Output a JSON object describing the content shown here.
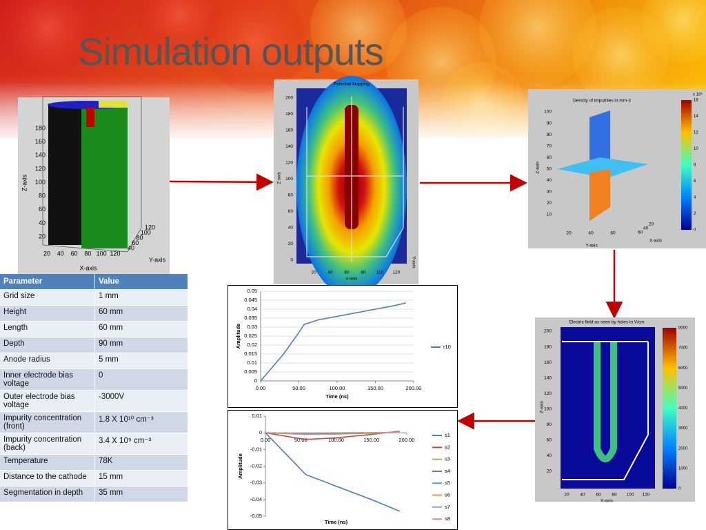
{
  "slide": {
    "title": "Simulation outputs",
    "figures": [
      {
        "xlabel": "X-axis",
        "ylabel": "Z-axis",
        "zlabel": "Y-axis",
        "xticks": [
          20,
          40,
          60,
          80,
          100,
          120
        ],
        "yticks": [
          20,
          40,
          60,
          80,
          100,
          120,
          140,
          160,
          180
        ],
        "zticks": [
          40,
          60,
          80,
          100,
          120
        ]
      },
      {
        "title": "Potential Mapping",
        "xlabel": "x-axis",
        "ylabel": "Z-axis",
        "zlabel": "Y-axis",
        "xticks": [
          20,
          40,
          60,
          80,
          100,
          120
        ],
        "yticks": [
          0,
          20,
          40,
          60,
          80,
          100,
          120,
          140,
          160,
          180,
          200
        ]
      },
      {
        "title": "Density of impurities in mm-3",
        "xlabel": "Y-axis",
        "ylabel": "Z-axis",
        "zlabel": "X-axis",
        "xticks": [
          20,
          40,
          60
        ],
        "yticks": [
          10,
          20,
          30,
          40,
          50,
          60,
          70,
          80,
          90,
          100
        ],
        "zticks": [
          20,
          40,
          60
        ],
        "colorbar_ticks": [
          0,
          2,
          4,
          6,
          8,
          10,
          12,
          14,
          16
        ],
        "colorbar_note": "x 10⁶"
      },
      {
        "title": "Electric field as seen by holes in V/cm",
        "xlabel": "X-axis",
        "ylabel": "Z-axis",
        "xticks": [
          20,
          40,
          60,
          80,
          100,
          120
        ],
        "yticks": [
          20,
          40,
          60,
          80,
          100,
          120,
          140,
          160,
          180,
          200
        ],
        "colorbar_ticks": [
          0,
          1000,
          2000,
          3000,
          4000,
          5000,
          6000,
          7000,
          8000
        ]
      }
    ],
    "table": {
      "header": [
        "Parameter",
        "Value"
      ],
      "rows": [
        [
          "Grid size",
          "1 mm"
        ],
        [
          "Height",
          "60 mm"
        ],
        [
          "Length",
          "60 mm"
        ],
        [
          "Depth",
          "90 mm"
        ],
        [
          "Anode radius",
          "5 mm"
        ],
        [
          "Inner electrode bias voltage",
          "0"
        ],
        [
          "Outer electrode bias voltage",
          "-3000V"
        ],
        [
          "Impurity concentration (front)",
          "1.8 X 10¹⁰ cm⁻³"
        ],
        [
          "Impurity concentration (back)",
          "3.4 X 10⁹ cm⁻³"
        ],
        [
          "Temperature",
          "78K"
        ],
        [
          "Distance to the cathode",
          "15 mm"
        ],
        [
          "Segmentation in depth",
          "35 mm"
        ]
      ]
    }
  },
  "chart_data": [
    {
      "type": "line",
      "x_label": "Time (ns)",
      "y_label": "Amplitude",
      "x": [
        0,
        10,
        20,
        30,
        40,
        50,
        57,
        75,
        100,
        125,
        150,
        175,
        190
      ],
      "series": [
        {
          "name": "r10",
          "color": "#4a7ebb",
          "values": [
            0,
            0.005,
            0.01,
            0.015,
            0.021,
            0.027,
            0.0315,
            0.034,
            0.036,
            0.038,
            0.04,
            0.042,
            0.0435
          ]
        }
      ],
      "xlim": [
        0,
        200
      ],
      "xticks": [
        {
          "value": 0,
          "label": "0.00"
        },
        {
          "value": 50,
          "label": "50.00"
        },
        {
          "value": 100,
          "label": "100.00"
        },
        {
          "value": 150,
          "label": "150.00"
        },
        {
          "value": 200,
          "label": "200.00"
        }
      ],
      "ylim": [
        0,
        0.05
      ],
      "yticks": [
        0,
        0.005,
        0.01,
        0.015,
        0.02,
        0.025,
        0.03,
        0.035,
        0.04,
        0.045,
        0.05
      ],
      "grid": true
    },
    {
      "type": "line",
      "x_label": "Time (ns)",
      "y_label": "Amplitude",
      "x": [
        0,
        57,
        100,
        150,
        190
      ],
      "series": [
        {
          "name": "s1",
          "color": "#4a7ebb",
          "values": [
            0,
            -0.025,
            -0.032,
            -0.04,
            -0.047
          ]
        },
        {
          "name": "s2",
          "color": "#be4b48",
          "values": [
            0,
            -0.004,
            -0.003,
            -0.001,
            0.001
          ]
        },
        {
          "name": "s3",
          "color": "#98b954",
          "values": [
            0,
            -0.001,
            -0.0008,
            -0.0003,
            0.0005
          ]
        },
        {
          "name": "s4",
          "color": "#7d60a0",
          "values": [
            0,
            -0.0005,
            -0.0004,
            0,
            0.0003
          ]
        },
        {
          "name": "s5",
          "color": "#46aac5",
          "values": [
            0,
            -0.0003,
            -0.0002,
            0,
            0.0002
          ]
        },
        {
          "name": "s6",
          "color": "#f79646",
          "values": [
            0,
            -0.0002,
            -0.0001,
            0,
            0.0002
          ]
        },
        {
          "name": "s7",
          "color": "#7ba8e0",
          "values": [
            0,
            -0.0001,
            0,
            0.0001,
            0.0002
          ]
        },
        {
          "name": "s8",
          "color": "#d99694",
          "values": [
            0,
            -0.0001,
            0,
            0.0001,
            0.0001
          ]
        }
      ],
      "xlim": [
        0,
        200
      ],
      "xticks": [
        {
          "value": 0,
          "label": "0.00"
        },
        {
          "value": 50,
          "label": "50.00"
        },
        {
          "value": 100,
          "label": "100.00"
        },
        {
          "value": 150,
          "label": "150.00"
        },
        {
          "value": 200,
          "label": "200.00"
        }
      ],
      "ylim": [
        -0.05,
        0.01
      ],
      "yticks": [
        -0.05,
        -0.04,
        -0.03,
        -0.02,
        -0.01,
        0,
        0.01
      ],
      "grid": false
    }
  ]
}
